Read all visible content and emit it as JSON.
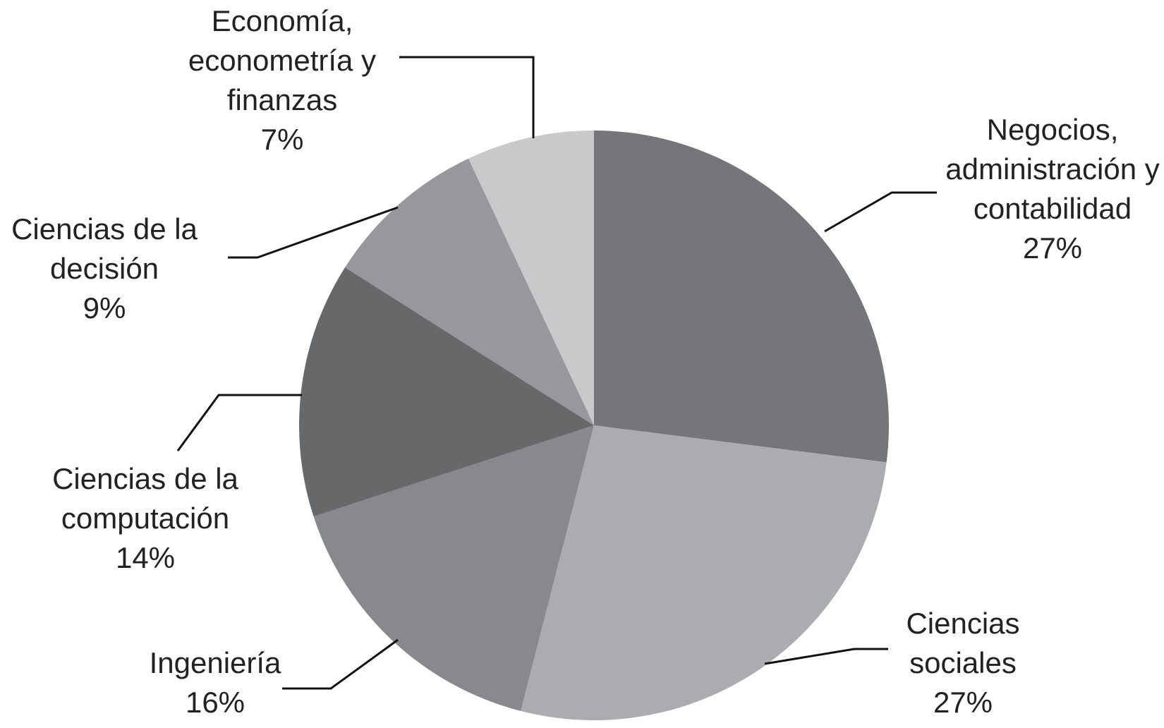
{
  "chart_data": {
    "type": "pie",
    "categories": [
      "Negocios, administración y contabilidad",
      "Ciencias sociales",
      "Ingeniería",
      "Ciencias de la computación",
      "Ciencias de la decisión",
      "Economía, econometría y finanzas"
    ],
    "values": [
      27,
      27,
      16,
      14,
      9,
      7
    ],
    "value_labels": [
      "27%",
      "27%",
      "16%",
      "14%",
      "9%",
      "7%"
    ],
    "colors": [
      "#75767a",
      "#abacb0",
      "#88898d",
      "#67686a",
      "#97989b",
      "#c8c9cb"
    ]
  }
}
